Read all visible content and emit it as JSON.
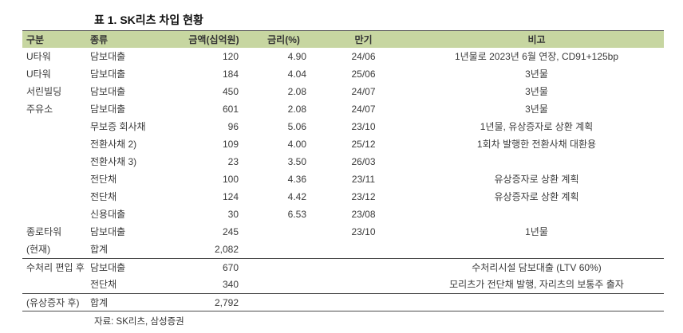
{
  "title": "표 1. SK리츠 차입 현황",
  "table": {
    "columns": [
      "구분",
      "종류",
      "금액(십억원)",
      "금리(%)",
      "만기",
      "비고"
    ],
    "column_keys": [
      "category",
      "type",
      "amount",
      "rate",
      "maturity",
      "note"
    ],
    "rows": [
      {
        "cells": [
          "U타워",
          "담보대출",
          "120",
          "4.90",
          "24/06",
          "1년물로 2023년 6월 연장, CD91+125bp"
        ]
      },
      {
        "cells": [
          "U타워",
          "담보대출",
          "184",
          "4.04",
          "25/06",
          "3년물"
        ]
      },
      {
        "cells": [
          "서린빌딩",
          "담보대출",
          "450",
          "2.08",
          "24/07",
          "3년물"
        ]
      },
      {
        "cells": [
          "주유소",
          "담보대출",
          "601",
          "2.08",
          "24/07",
          "3년물"
        ]
      },
      {
        "cells": [
          "",
          "무보증 회사채",
          "96",
          "5.06",
          "23/10",
          "1년물, 유상증자로 상환 계획"
        ]
      },
      {
        "cells": [
          "",
          "전환사채 2)",
          "109",
          "4.00",
          "25/12",
          "1회차 발행한 전환사채 대환용"
        ]
      },
      {
        "cells": [
          "",
          "전환사채 3)",
          "23",
          "3.50",
          "26/03",
          ""
        ]
      },
      {
        "cells": [
          "",
          "전단채",
          "100",
          "4.36",
          "23/11",
          "유상증자로 상환 계획"
        ]
      },
      {
        "cells": [
          "",
          "전단채",
          "124",
          "4.42",
          "23/12",
          "유상증자로 상환 계획"
        ]
      },
      {
        "cells": [
          "",
          "신용대출",
          "30",
          "6.53",
          "23/08",
          ""
        ]
      },
      {
        "cells": [
          "종로타워",
          "담보대출",
          "245",
          "",
          "23/10",
          "1년물"
        ]
      },
      {
        "cells": [
          "(현재)",
          "합계",
          "2,082",
          "",
          "",
          ""
        ]
      },
      {
        "cells": [
          "수처리 편입 후",
          "담보대출",
          "670",
          "",
          "",
          "수처리시설 담보대출 (LTV 60%)"
        ],
        "divider": true
      },
      {
        "cells": [
          "",
          "전단채",
          "340",
          "",
          "",
          "모리츠가 전단채 발행, 자리츠의 보통주 출자"
        ]
      },
      {
        "cells": [
          "(유상증자 후)",
          "합계",
          "2,792",
          "",
          "",
          ""
        ],
        "divider": true
      }
    ]
  },
  "source": "자료: SK리츠, 삼성증권",
  "colors": {
    "header_bg": "#c7d6a1",
    "border": "#4a4a4a"
  }
}
